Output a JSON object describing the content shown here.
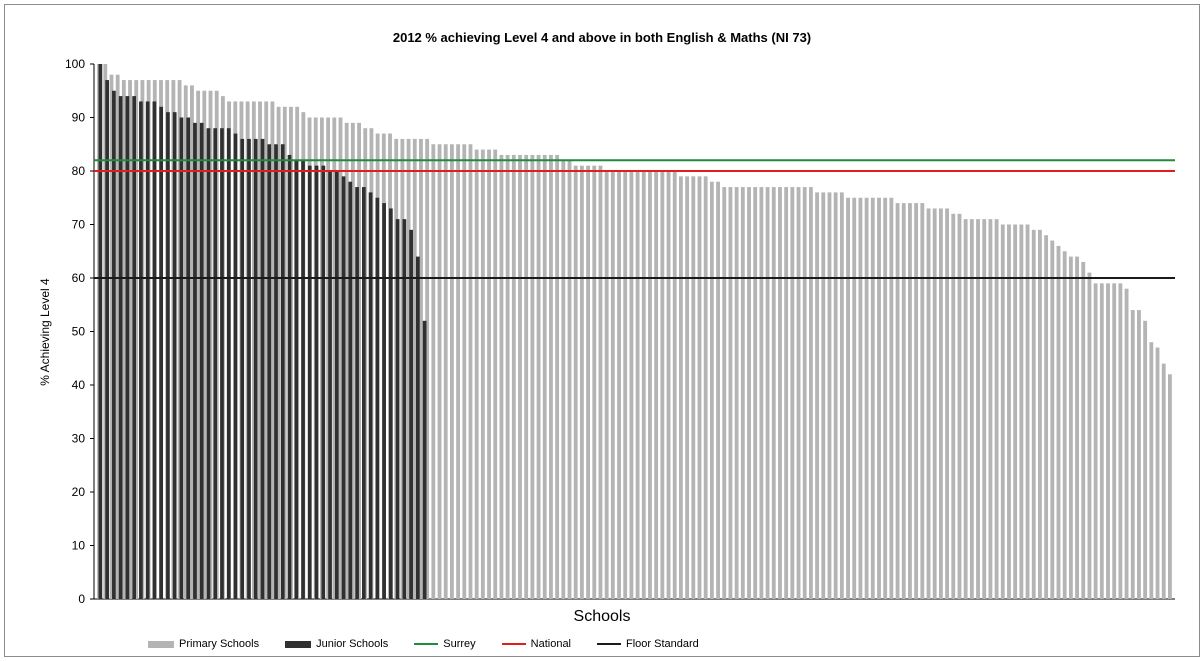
{
  "chart_data": {
    "type": "bar",
    "title": "2012 % achieving Level 4 and above in both English & Maths (NI 73)",
    "xlabel": "Schools",
    "ylabel": "% Achieving Level 4",
    "ylim": [
      0,
      100
    ],
    "yticks": [
      0,
      10,
      20,
      30,
      40,
      50,
      60,
      70,
      80,
      90,
      100
    ],
    "grid": false,
    "legend_position": "bottom",
    "series": [
      {
        "name": "Primary Schools",
        "color": "#b4b4b4",
        "values": [
          100,
          100,
          98,
          98,
          97,
          97,
          97,
          97,
          97,
          97,
          97,
          97,
          97,
          97,
          96,
          96,
          95,
          95,
          95,
          95,
          94,
          93,
          93,
          93,
          93,
          93,
          93,
          93,
          93,
          92,
          92,
          92,
          92,
          91,
          90,
          90,
          90,
          90,
          90,
          90,
          89,
          89,
          89,
          88,
          88,
          87,
          87,
          87,
          86,
          86,
          86,
          86,
          86,
          86,
          85,
          85,
          85,
          85,
          85,
          85,
          85,
          84,
          84,
          84,
          84,
          83,
          83,
          83,
          83,
          83,
          83,
          83,
          83,
          83,
          83,
          82,
          82,
          81,
          81,
          81,
          81,
          81,
          80,
          80,
          80,
          80,
          80,
          80,
          80,
          80,
          80,
          80,
          80,
          80,
          79,
          79,
          79,
          79,
          79,
          78,
          78,
          77,
          77,
          77,
          77,
          77,
          77,
          77,
          77,
          77,
          77,
          77,
          77,
          77,
          77,
          77,
          76,
          76,
          76,
          76,
          76,
          75,
          75,
          75,
          75,
          75,
          75,
          75,
          75,
          74,
          74,
          74,
          74,
          74,
          73,
          73,
          73,
          73,
          72,
          72,
          71,
          71,
          71,
          71,
          71,
          71,
          70,
          70,
          70,
          70,
          70,
          69,
          69,
          68,
          67,
          66,
          65,
          64,
          64,
          63,
          61,
          59,
          59,
          59,
          59,
          59,
          58,
          54,
          54,
          52,
          48,
          47,
          44,
          42
        ]
      },
      {
        "name": "Junior Schools",
        "color": "#303030",
        "values": [
          100,
          97,
          95,
          94,
          94,
          94,
          93,
          93,
          93,
          92,
          91,
          91,
          90,
          90,
          89,
          89,
          88,
          88,
          88,
          88,
          87,
          86,
          86,
          86,
          86,
          85,
          85,
          85,
          83,
          82,
          82,
          81,
          81,
          81,
          80,
          80,
          79,
          78,
          77,
          77,
          76,
          75,
          74,
          73,
          71,
          71,
          69,
          64,
          52
        ]
      }
    ],
    "reference_lines": [
      {
        "name": "Surrey",
        "value": 82,
        "color": "#1e8c3c"
      },
      {
        "name": "National",
        "value": 80,
        "color": "#e01e1e"
      },
      {
        "name": "Floor Standard",
        "value": 60,
        "color": "#1a1a1a"
      }
    ]
  }
}
